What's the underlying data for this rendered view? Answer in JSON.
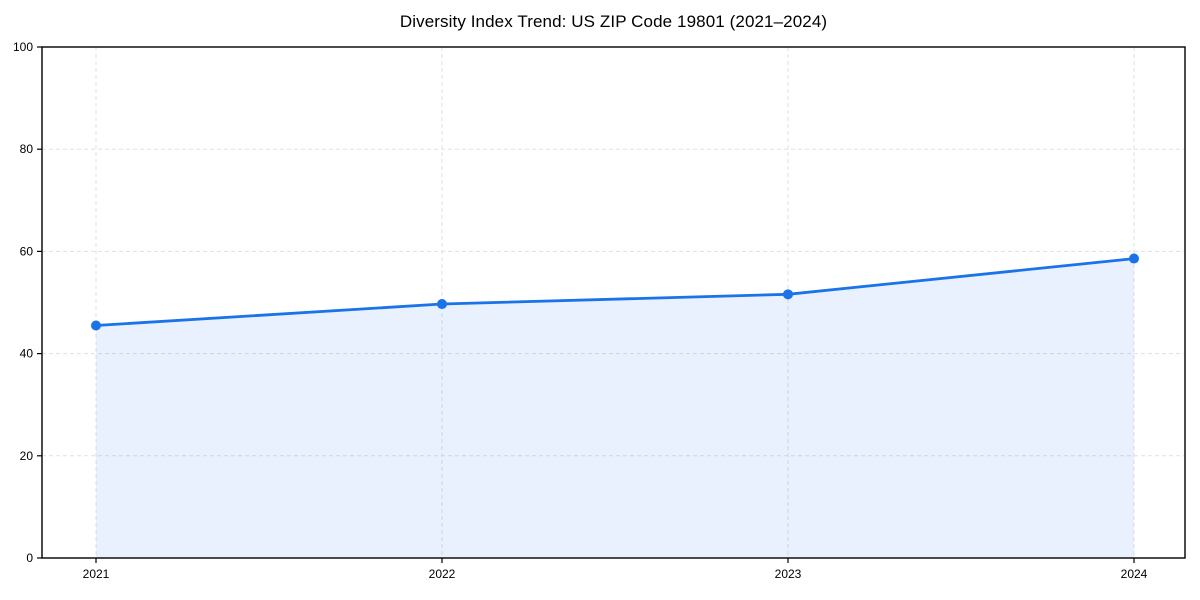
{
  "page": {
    "background_color": "#ffffff"
  },
  "chart_data": {
    "type": "area",
    "title": "Diversity Index Trend: US ZIP Code 19801 (2021–2024)",
    "categories": [
      "2021",
      "2022",
      "2023",
      "2024"
    ],
    "series": [
      {
        "name": "Diversity Index",
        "values": [
          45.5,
          49.7,
          51.6,
          58.6
        ]
      }
    ],
    "xlabel": "",
    "ylabel": "",
    "ylim": [
      0,
      100
    ],
    "yticks": [
      0,
      20,
      40,
      60,
      80,
      100
    ],
    "grid": true,
    "grid_style": "dashed",
    "legend_position": "none",
    "marker": "circle",
    "colors": {
      "line": "#1a73e8",
      "fill": "#1a73e8",
      "fill_opacity": 0.1,
      "grid": "#d9d9d9",
      "axis": "#000000",
      "tick_text": "#000000",
      "title_text": "#000000"
    }
  }
}
